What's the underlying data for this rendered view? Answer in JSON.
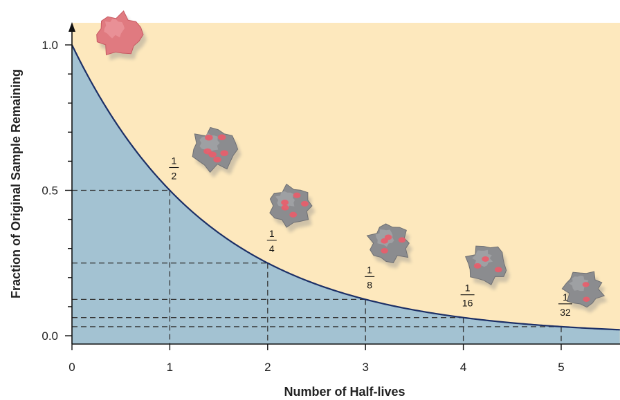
{
  "chart_data": {
    "type": "line",
    "title": "",
    "xlabel": "Number of Half-lives",
    "ylabel": "Fraction of Original Sample Remaining",
    "xlim": [
      0,
      5.6
    ],
    "ylim": [
      0,
      1.0
    ],
    "x_ticks": [
      "0",
      "1",
      "2",
      "3",
      "4",
      "5"
    ],
    "y_ticks": [
      "0.0",
      "0.5",
      "1.0"
    ],
    "series": [
      {
        "x": [
          0,
          1,
          2,
          3,
          4,
          5
        ],
        "values": [
          1.0,
          0.5,
          0.25,
          0.125,
          0.0625,
          0.03125
        ]
      }
    ],
    "annotations": [
      {
        "x": 1,
        "num": "1",
        "den": "2"
      },
      {
        "x": 2,
        "num": "1",
        "den": "4"
      },
      {
        "x": 3,
        "num": "1",
        "den": "8"
      },
      {
        "x": 4,
        "num": "1",
        "den": "16"
      },
      {
        "x": 5,
        "num": "1",
        "den": "32"
      }
    ],
    "grid": false,
    "colors": {
      "above_curve": "#fde8bd",
      "below_curve": "#a3c2d2",
      "curve": "#1c2f66",
      "fresh_sample": "#e07a80",
      "decayed_sample": "#8b8c8f",
      "decay_spots": "#ea5c6a"
    },
    "icons": [
      "fresh-sample-icon",
      "decayed-sample-icon"
    ]
  }
}
